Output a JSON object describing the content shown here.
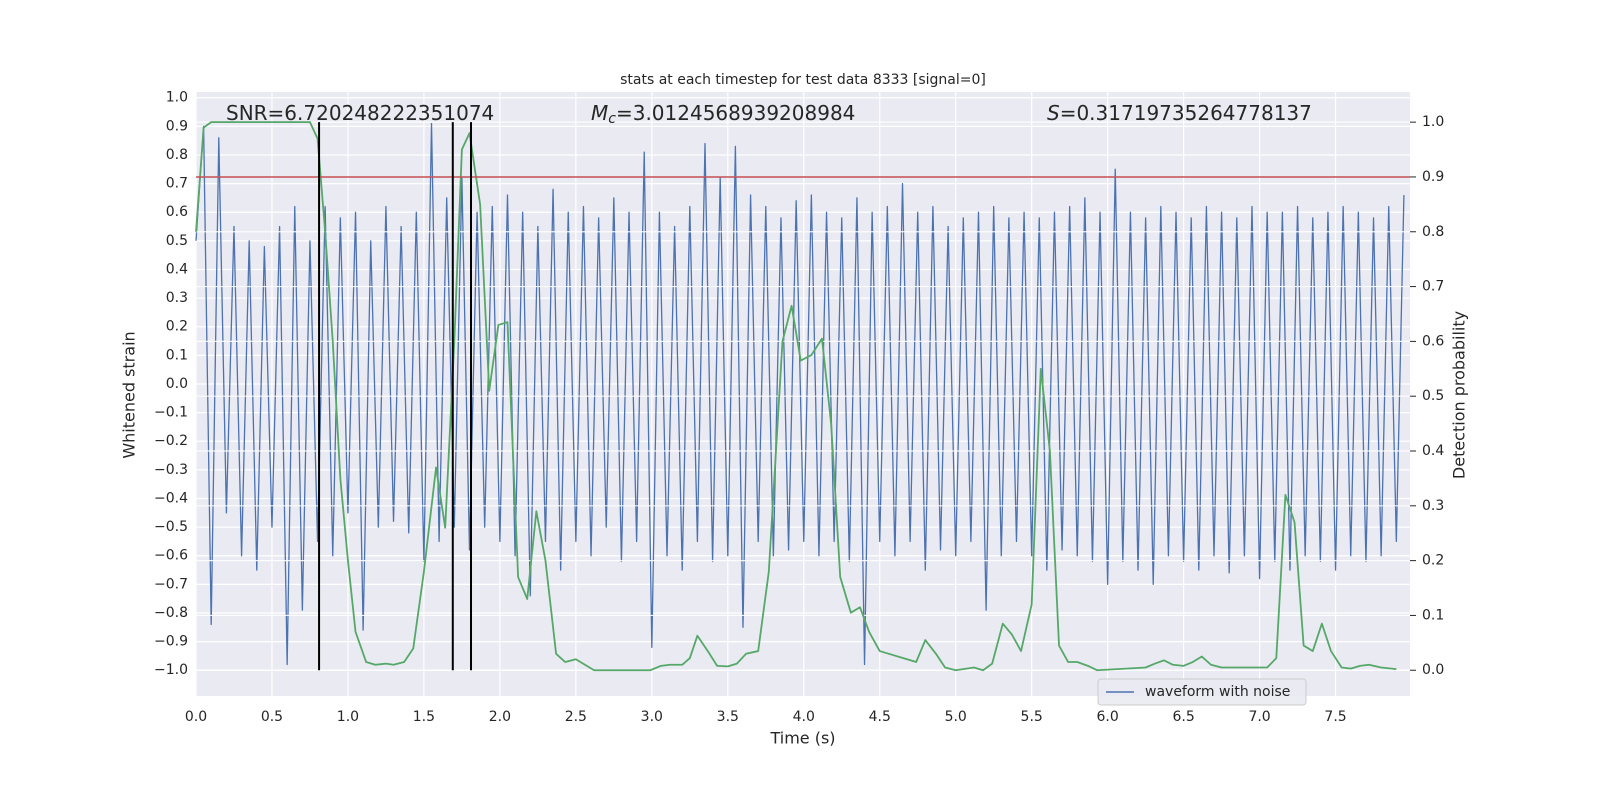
{
  "chart_data": {
    "type": "line",
    "title": "stats at each timestep for test data 8333 [signal=0]",
    "xlabel": "Time (s)",
    "ylabel": "Whitened strain",
    "y2label": "Detection probability",
    "annotations": [
      {
        "text": "SNR=6.720248222351074"
      },
      {
        "italic": "M",
        "sub": "c",
        "text": "=3.0124568939208984"
      },
      {
        "italic": "S",
        "text": "=0.31719735264778137"
      }
    ],
    "xlim": [
      0,
      7.99
    ],
    "ylim": [
      -1.09,
      1.02
    ],
    "y2lim": [
      -0.047,
      1.055
    ],
    "xticks": [
      {
        "value": 0,
        "label": "0.0"
      },
      0.5,
      {
        "value": 1,
        "label": "1.0"
      },
      1.5,
      {
        "value": 2,
        "label": "2.0"
      },
      2.5,
      {
        "value": 3,
        "label": "3.0"
      },
      3.5,
      {
        "value": 4,
        "label": "4.0"
      },
      4.5,
      {
        "value": 5,
        "label": "5.0"
      },
      5.5,
      {
        "value": 6,
        "label": "6.0"
      },
      6.5,
      {
        "value": 7,
        "label": "7.0"
      },
      7.5
    ],
    "yticks": [
      {
        "value": -1,
        "label": "−1.0"
      },
      {
        "value": -0.9,
        "label": "−0.9"
      },
      {
        "value": -0.8,
        "label": "−0.8"
      },
      {
        "value": -0.7,
        "label": "−0.7"
      },
      {
        "value": -0.6,
        "label": "−0.6"
      },
      {
        "value": -0.5,
        "label": "−0.5"
      },
      {
        "value": -0.4,
        "label": "−0.4"
      },
      {
        "value": -0.3,
        "label": "−0.3"
      },
      {
        "value": -0.2,
        "label": "−0.2"
      },
      {
        "value": -0.1,
        "label": "−0.1"
      },
      {
        "value": 0,
        "label": "0.0"
      },
      0.1,
      0.2,
      0.3,
      0.4,
      0.5,
      0.6,
      0.7,
      0.8,
      0.9,
      {
        "value": 1,
        "label": "1.0"
      }
    ],
    "y2ticks": [
      {
        "value": 0,
        "label": "0.0"
      },
      0.1,
      0.2,
      0.3,
      0.4,
      0.5,
      0.6,
      0.7,
      0.8,
      0.9,
      {
        "value": 1,
        "label": "1.0"
      }
    ],
    "grid": true,
    "legend": "lower right",
    "series": [
      {
        "name": "waveform with noise",
        "color": "#4c72b0",
        "x": [
          0,
          0.05,
          0.1,
          0.15,
          0.2,
          0.25,
          0.3,
          0.35,
          0.4,
          0.45,
          0.5,
          0.55,
          0.6,
          0.65,
          0.7,
          0.75,
          0.8,
          0.85,
          0.9,
          0.95,
          1,
          1.05,
          1.1,
          1.15,
          1.2,
          1.25,
          1.3,
          1.35,
          1.4,
          1.45,
          1.5,
          1.55,
          1.6,
          1.65,
          1.7,
          1.75,
          1.8,
          1.85,
          1.9,
          1.95,
          2,
          2.05,
          2.1,
          2.15,
          2.2,
          2.25,
          2.3,
          2.35,
          2.4,
          2.45,
          2.5,
          2.55,
          2.6,
          2.65,
          2.7,
          2.75,
          2.8,
          2.85,
          2.9,
          2.95,
          3,
          3.05,
          3.1,
          3.15,
          3.2,
          3.25,
          3.3,
          3.35,
          3.4,
          3.45,
          3.5,
          3.55,
          3.6,
          3.65,
          3.7,
          3.75,
          3.8,
          3.85,
          3.9,
          3.95,
          4,
          4.05,
          4.1,
          4.15,
          4.2,
          4.25,
          4.3,
          4.35,
          4.4,
          4.45,
          4.5,
          4.55,
          4.6,
          4.65,
          4.7,
          4.75,
          4.8,
          4.85,
          4.9,
          4.95,
          5,
          5.05,
          5.1,
          5.15,
          5.2,
          5.25,
          5.3,
          5.35,
          5.4,
          5.45,
          5.5,
          5.55,
          5.6,
          5.65,
          5.7,
          5.75,
          5.8,
          5.85,
          5.9,
          5.95,
          6,
          6.05,
          6.1,
          6.15,
          6.2,
          6.25,
          6.3,
          6.35,
          6.4,
          6.45,
          6.5,
          6.55,
          6.6,
          6.65,
          6.7,
          6.75,
          6.8,
          6.85,
          6.9,
          6.95,
          7,
          7.05,
          7.1,
          7.15,
          7.2,
          7.25,
          7.3,
          7.35,
          7.4,
          7.45,
          7.5,
          7.55,
          7.6,
          7.65,
          7.7,
          7.75,
          7.8,
          7.85,
          7.9,
          7.95
        ],
        "values": [
          0.5,
          0.9,
          -0.84,
          0.86,
          -0.45,
          0.55,
          -0.6,
          0.5,
          -0.65,
          0.48,
          -0.5,
          0.55,
          -0.98,
          0.62,
          -0.79,
          0.5,
          -0.55,
          0.62,
          -0.6,
          0.58,
          -0.45,
          0.6,
          -0.86,
          0.5,
          -0.5,
          0.62,
          -0.48,
          0.55,
          -0.52,
          0.6,
          -0.62,
          0.91,
          -0.55,
          0.65,
          -0.5,
          0.72,
          -0.58,
          0.6,
          -0.5,
          0.62,
          -0.55,
          0.66,
          -0.6,
          0.6,
          -0.74,
          0.55,
          -0.55,
          0.68,
          -0.65,
          0.6,
          -0.55,
          0.62,
          -0.6,
          0.58,
          -0.5,
          0.65,
          -0.62,
          0.6,
          -0.55,
          0.81,
          -0.92,
          0.6,
          -0.6,
          0.55,
          -0.65,
          0.62,
          -0.55,
          0.84,
          -0.62,
          0.72,
          -0.6,
          0.83,
          -0.85,
          0.66,
          -0.55,
          0.62,
          -0.6,
          0.58,
          -0.58,
          0.64,
          -0.55,
          0.66,
          -0.6,
          0.6,
          -0.55,
          0.58,
          -0.62,
          0.65,
          -0.98,
          0.6,
          -0.55,
          0.62,
          -0.6,
          0.7,
          -0.55,
          0.6,
          -0.65,
          0.62,
          -0.58,
          0.55,
          -0.6,
          0.58,
          -0.55,
          0.6,
          -0.79,
          0.62,
          -0.6,
          0.58,
          -0.55,
          0.6,
          -0.6,
          0.58,
          -0.65,
          0.6,
          -0.58,
          0.62,
          -0.6,
          0.65,
          -0.62,
          0.6,
          -0.7,
          0.75,
          -0.62,
          0.6,
          -0.65,
          0.58,
          -0.7,
          0.62,
          -0.6,
          0.6,
          -0.62,
          0.58,
          -0.65,
          0.62,
          -0.6,
          0.6,
          -0.66,
          0.58,
          -0.6,
          0.62,
          -0.68,
          0.6,
          -0.62,
          0.6,
          -0.65,
          0.62,
          -0.6,
          0.58,
          -0.62,
          0.6,
          -0.65,
          0.62,
          -0.6,
          0.6,
          -0.62,
          0.58,
          -0.6,
          0.62,
          -0.55,
          0.66
        ]
      },
      {
        "color": "#55a868",
        "axis": "y2",
        "x": [
          0,
          0.05,
          0.1,
          0.75,
          0.8,
          0.85,
          0.9,
          0.95,
          1,
          1.05,
          1.12,
          1.18,
          1.25,
          1.3,
          1.37,
          1.43,
          1.5,
          1.58,
          1.64,
          1.7,
          1.75,
          1.8,
          1.87,
          1.93,
          1.99,
          2.05,
          2.12,
          2.18,
          2.24,
          2.3,
          2.37,
          2.43,
          2.5,
          2.62,
          2.99,
          3.06,
          3.12,
          3.2,
          3.25,
          3.3,
          3.38,
          3.43,
          3.5,
          3.56,
          3.62,
          3.7,
          3.77,
          3.86,
          3.92,
          3.98,
          4.05,
          4.12,
          4.18,
          4.24,
          4.31,
          4.37,
          4.43,
          4.5,
          4.56,
          4.68,
          4.74,
          4.8,
          4.87,
          4.93,
          5,
          5.12,
          5.18,
          5.24,
          5.31,
          5.37,
          5.43,
          5.5,
          5.56,
          5.62,
          5.68,
          5.74,
          5.8,
          5.87,
          5.93,
          6.25,
          6.31,
          6.37,
          6.43,
          6.5,
          6.56,
          6.62,
          6.68,
          6.75,
          7.05,
          7.11,
          7.17,
          7.23,
          7.29,
          7.35,
          7.41,
          7.47,
          7.54,
          7.6,
          7.66,
          7.72,
          7.8,
          7.9
        ],
        "values": [
          0.8,
          0.99,
          1,
          1,
          0.97,
          0.8,
          0.6,
          0.35,
          0.2,
          0.07,
          0.015,
          0.01,
          0.012,
          0.01,
          0.015,
          0.04,
          0.18,
          0.37,
          0.26,
          0.6,
          0.95,
          0.98,
          0.85,
          0.51,
          0.63,
          0.635,
          0.17,
          0.13,
          0.29,
          0.2,
          0.03,
          0.015,
          0.02,
          0,
          0,
          0.008,
          0.01,
          0.01,
          0.022,
          0.063,
          0.03,
          0.008,
          0.007,
          0.012,
          0.03,
          0.035,
          0.18,
          0.6,
          0.665,
          0.565,
          0.575,
          0.605,
          0.45,
          0.17,
          0.105,
          0.115,
          0.07,
          0.035,
          0.03,
          0.02,
          0.015,
          0.055,
          0.03,
          0.005,
          0,
          0.005,
          0,
          0.012,
          0.085,
          0.065,
          0.035,
          0.12,
          0.55,
          0.4,
          0.045,
          0.015,
          0.015,
          0.008,
          0,
          0.005,
          0.012,
          0.018,
          0.01,
          0.008,
          0.015,
          0.025,
          0.01,
          0.005,
          0.005,
          0.022,
          0.32,
          0.27,
          0.045,
          0.035,
          0.085,
          0.035,
          0.005,
          0.003,
          0.008,
          0.01,
          0.005,
          0.002
        ]
      }
    ],
    "threshold": {
      "value": 0.9,
      "axis": "y2",
      "color": "#c44e52"
    },
    "markers": {
      "x": [
        0.81,
        1.69,
        1.81
      ],
      "axis": "y2",
      "from": 0,
      "to": 1,
      "color": "#000000"
    }
  }
}
